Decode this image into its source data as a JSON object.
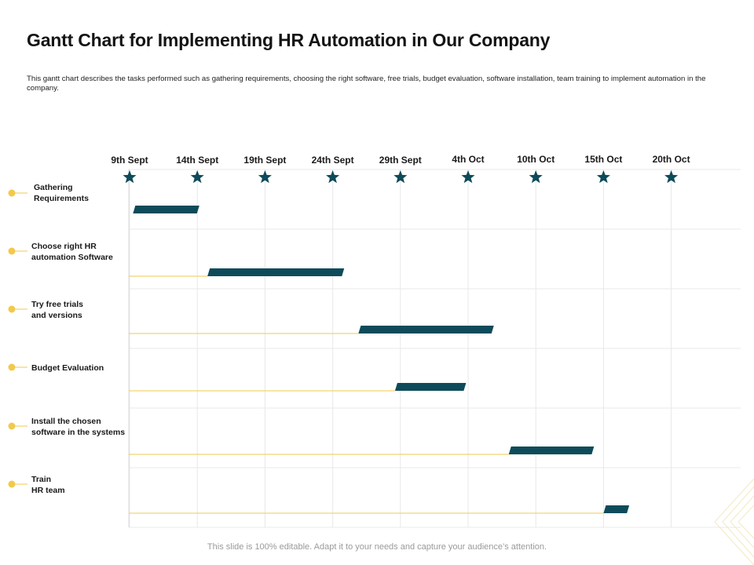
{
  "slide": {
    "title": "Gantt Chart for Implementing HR Automation in Our Company",
    "description": "This gantt chart describes the tasks performed such as gathering requirements, choosing the right software, free trials, budget evaluation, software installation, team training to implement automation in the company.",
    "footer": "This slide is 100% editable. Adapt it to your needs and capture your audience’s attention."
  },
  "colors": {
    "bar": "#0e4b5a",
    "star": "#0e4b5a",
    "connector": "#f2c94c",
    "grid": "#e8e8e8"
  },
  "chart_data": {
    "type": "bar",
    "orientation": "horizontal-gantt",
    "x_ticks": [
      "9th Sept",
      "14th Sept",
      "19th Sept",
      "24th Sept",
      "29th Sept",
      "4th Oct",
      "10th Oct",
      "15th Oct",
      "20th Oct"
    ],
    "tasks": [
      {
        "lines": [
          "Gathering",
          "Requirements"
        ],
        "start": 0.05,
        "end": 1.03,
        "lead": false
      },
      {
        "lines": [
          "Choose right HR",
          "automation Software"
        ],
        "start": 1.15,
        "end": 3.17,
        "lead": true
      },
      {
        "lines": [
          "Try free trials",
          "and versions"
        ],
        "start": 3.38,
        "end": 5.38,
        "lead": true
      },
      {
        "lines": [
          "Budget Evaluation"
        ],
        "start": 3.92,
        "end": 4.97,
        "lead": true
      },
      {
        "lines": [
          "Install the chosen",
          "software in the systems"
        ],
        "start": 5.6,
        "end": 6.86,
        "lead": true
      },
      {
        "lines": [
          "Train",
          "HR team"
        ],
        "start": 7.0,
        "end": 7.38,
        "lead": true
      }
    ]
  }
}
